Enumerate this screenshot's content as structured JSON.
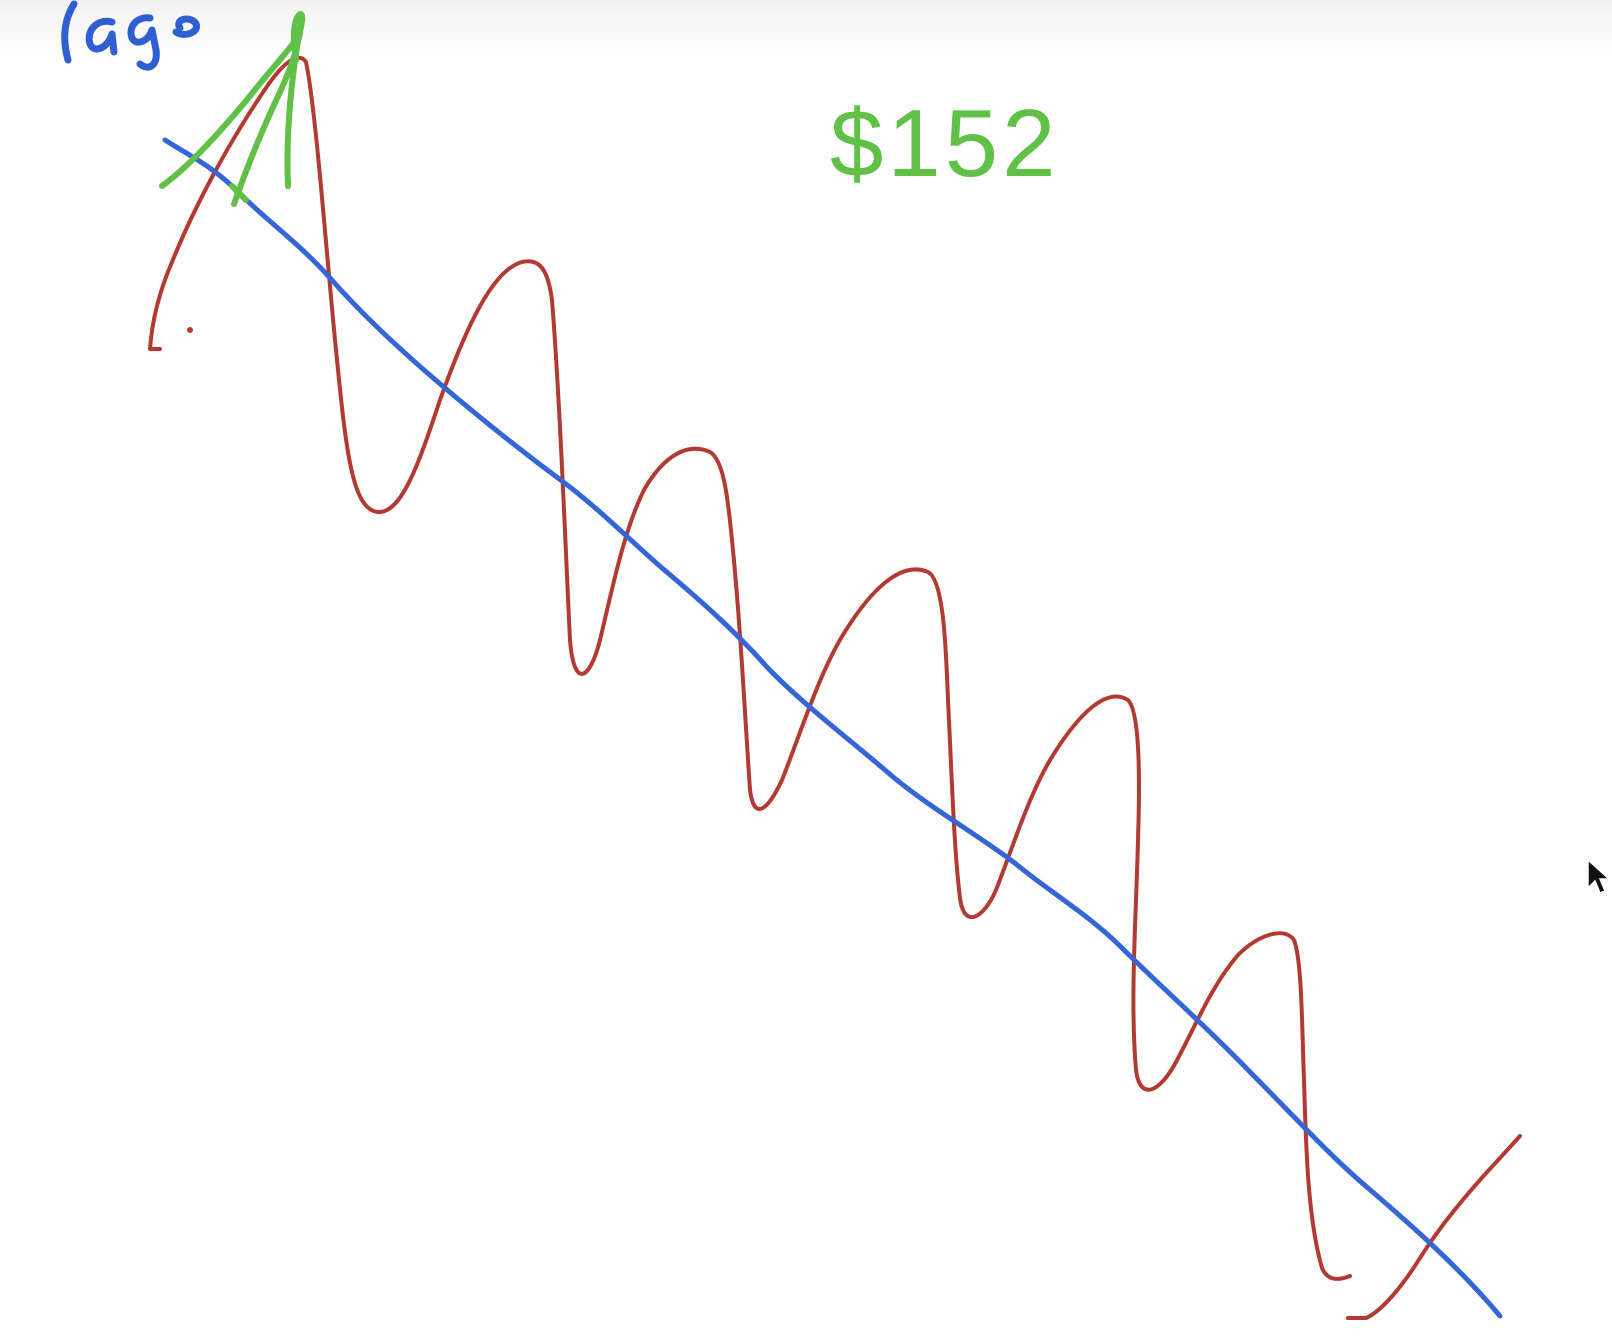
{
  "whiteboard": {
    "annotation_top_left": "rage",
    "price_label": "$152",
    "colors": {
      "red_wave": "#b33a32",
      "blue_trend": "#3565d6",
      "green_marks": "#61c048",
      "blue_text": "#2f5fd0"
    }
  },
  "cursor": {
    "icon": "mouse-pointer-icon"
  }
}
